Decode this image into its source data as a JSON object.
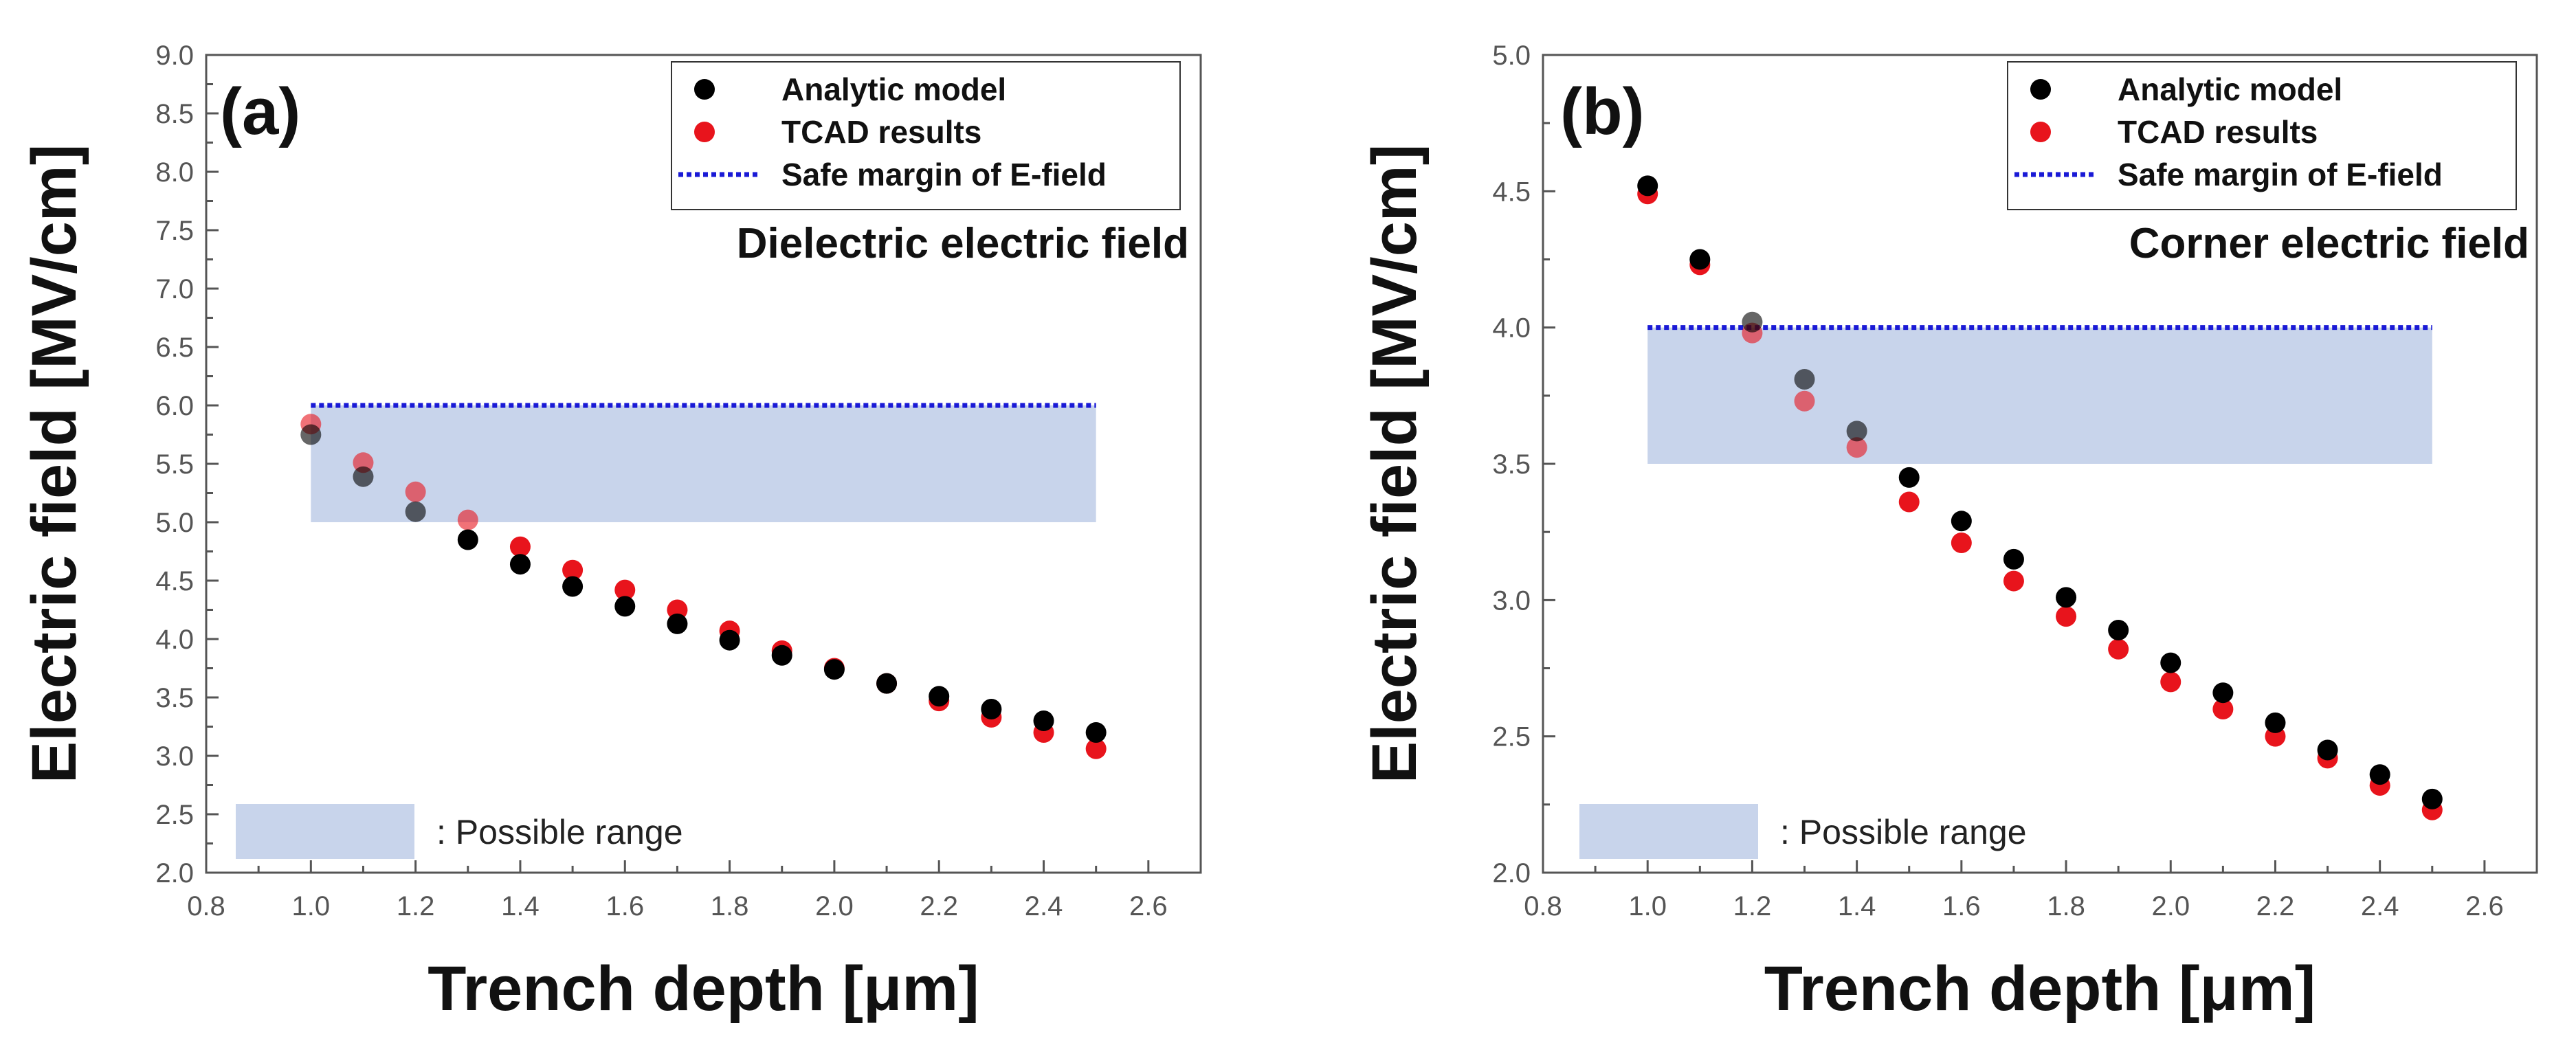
{
  "chart_data": [
    {
      "type": "scatter",
      "panel": "(a)",
      "annotation": "Dielectric electric field",
      "xlabel": "Trench depth [μm]",
      "ylabel": "Electric field [MV/cm]",
      "xlim": [
        0.8,
        2.7
      ],
      "ylim": [
        2.0,
        9.0
      ],
      "xticks": [
        0.8,
        1.0,
        1.2,
        1.4,
        1.6,
        1.8,
        2.0,
        2.2,
        2.4,
        2.6
      ],
      "xtick_labels": [
        "0.8",
        "1.0",
        "1.2",
        "1.4",
        "1.6",
        "1.8",
        "2.0",
        "2.2",
        "2.4",
        "2.6"
      ],
      "yticks": [
        2.0,
        2.5,
        3.0,
        3.5,
        4.0,
        4.5,
        5.0,
        5.5,
        6.0,
        6.5,
        7.0,
        7.5,
        8.0,
        8.5,
        9.0
      ],
      "ytick_labels": [
        "2.0",
        "2.5",
        "3.0",
        "3.5",
        "4.0",
        "4.5",
        "5.0",
        "5.5",
        "6.0",
        "6.5",
        "7.0",
        "7.5",
        "8.0",
        "8.5",
        "9.0"
      ],
      "legend_position": "top-right",
      "x": [
        1.0,
        1.1,
        1.2,
        1.3,
        1.4,
        1.5,
        1.6,
        1.7,
        1.8,
        1.9,
        2.0,
        2.1,
        2.2,
        2.3,
        2.4,
        2.5
      ],
      "series": [
        {
          "name": "Analytic model",
          "color": "#000000",
          "values": [
            5.75,
            5.39,
            5.09,
            4.85,
            4.64,
            4.45,
            4.28,
            4.13,
            3.99,
            3.86,
            3.74,
            3.62,
            3.51,
            3.4,
            3.3,
            3.2
          ]
        },
        {
          "name": "TCAD results",
          "color": "#e8141c",
          "values": [
            5.84,
            5.51,
            5.26,
            5.02,
            4.79,
            4.59,
            4.42,
            4.25,
            4.07,
            3.9,
            3.75,
            3.62,
            3.47,
            3.33,
            3.2,
            3.06
          ]
        }
      ],
      "safe_margin": {
        "name": "Safe margin of E-field",
        "color": "#1a1ad6",
        "y": 6.0,
        "x_range": [
          1.0,
          2.5
        ]
      },
      "possible_range": {
        "label": ": Possible range",
        "color": "#c8d4eb",
        "x_range": [
          1.0,
          2.5
        ],
        "y_range": [
          5.0,
          6.0
        ]
      }
    },
    {
      "type": "scatter",
      "panel": "(b)",
      "annotation": "Corner electric field",
      "xlabel": "Trench depth [μm]",
      "ylabel": "Electric field [MV/cm]",
      "xlim": [
        0.8,
        2.7
      ],
      "ylim": [
        2.0,
        5.0
      ],
      "xticks": [
        0.8,
        1.0,
        1.2,
        1.4,
        1.6,
        1.8,
        2.0,
        2.2,
        2.4,
        2.6
      ],
      "xtick_labels": [
        "0.8",
        "1.0",
        "1.2",
        "1.4",
        "1.6",
        "1.8",
        "2.0",
        "2.2",
        "2.4",
        "2.6"
      ],
      "yticks": [
        2.0,
        2.5,
        3.0,
        3.5,
        4.0,
        4.5,
        5.0
      ],
      "ytick_labels": [
        "2.0",
        "2.5",
        "3.0",
        "3.5",
        "4.0",
        "4.5",
        "5.0"
      ],
      "legend_position": "top-right",
      "x": [
        1.0,
        1.1,
        1.2,
        1.3,
        1.4,
        1.5,
        1.6,
        1.7,
        1.8,
        1.9,
        2.0,
        2.1,
        2.2,
        2.3,
        2.4,
        2.5
      ],
      "series": [
        {
          "name": "Analytic model",
          "color": "#000000",
          "values": [
            4.52,
            4.25,
            4.02,
            3.81,
            3.62,
            3.45,
            3.29,
            3.15,
            3.01,
            2.89,
            2.77,
            2.66,
            2.55,
            2.45,
            2.36,
            2.27
          ]
        },
        {
          "name": "TCAD results",
          "color": "#e8141c",
          "values": [
            4.49,
            4.23,
            3.98,
            3.73,
            3.56,
            3.36,
            3.21,
            3.07,
            2.94,
            2.82,
            2.7,
            2.6,
            2.5,
            2.42,
            2.32,
            2.23
          ]
        }
      ],
      "safe_margin": {
        "name": "Safe margin of E-field",
        "color": "#1a1ad6",
        "y": 4.0,
        "x_range": [
          1.0,
          2.5
        ]
      },
      "possible_range": {
        "label": ": Possible range",
        "color": "#c8d4eb",
        "x_range": [
          1.0,
          2.5
        ],
        "y_range": [
          3.5,
          4.0
        ]
      }
    }
  ]
}
